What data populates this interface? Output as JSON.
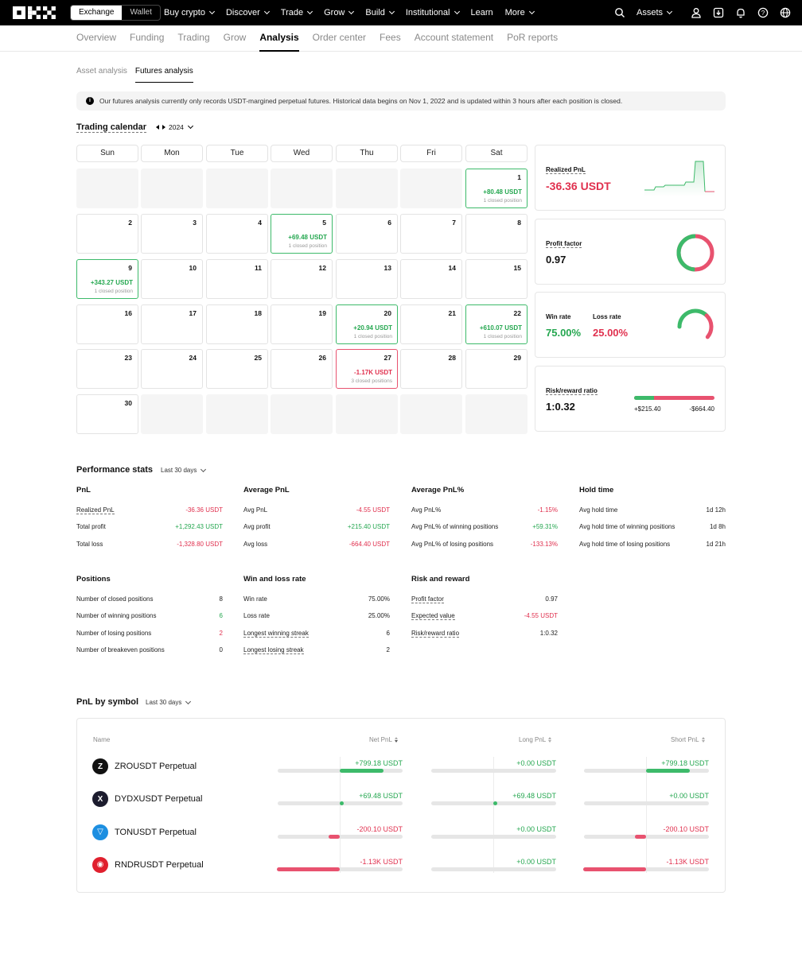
{
  "nav": {
    "exchange": "Exchange",
    "wallet": "Wallet",
    "items": [
      "Buy crypto",
      "Discover",
      "Trade",
      "Grow",
      "Build",
      "Institutional",
      "Learn",
      "More"
    ],
    "assets": "Assets"
  },
  "subnav": [
    "Overview",
    "Funding",
    "Trading",
    "Grow",
    "Analysis",
    "Order center",
    "Fees",
    "Account statement",
    "PoR reports"
  ],
  "analysis_tabs": [
    "Asset analysis",
    "Futures analysis"
  ],
  "notice": "Our futures analysis currently only records USDT-margined perpetual futures. Historical data begins on Nov 1, 2022 and is updated within 3 hours after each position is closed.",
  "calendar": {
    "title": "Trading calendar",
    "year": "2024",
    "weekdays": [
      "Sun",
      "Mon",
      "Tue",
      "Wed",
      "Thu",
      "Fri",
      "Sat"
    ],
    "days": [
      {
        "day": "1",
        "col": 6,
        "row": 0,
        "pnl": "+80.48 USDT",
        "positions": "1 closed position",
        "kind": "win"
      },
      {
        "day": "2",
        "col": 0,
        "row": 1
      },
      {
        "day": "3",
        "col": 1,
        "row": 1
      },
      {
        "day": "4",
        "col": 2,
        "row": 1
      },
      {
        "day": "5",
        "col": 3,
        "row": 1,
        "pnl": "+69.48 USDT",
        "positions": "1 closed position",
        "kind": "win"
      },
      {
        "day": "6",
        "col": 4,
        "row": 1
      },
      {
        "day": "7",
        "col": 5,
        "row": 1
      },
      {
        "day": "8",
        "col": 6,
        "row": 1
      },
      {
        "day": "9",
        "col": 0,
        "row": 2,
        "pnl": "+343.27 USDT",
        "positions": "1 closed position",
        "kind": "win"
      },
      {
        "day": "10",
        "col": 1,
        "row": 2
      },
      {
        "day": "11",
        "col": 2,
        "row": 2
      },
      {
        "day": "12",
        "col": 3,
        "row": 2
      },
      {
        "day": "13",
        "col": 4,
        "row": 2
      },
      {
        "day": "14",
        "col": 5,
        "row": 2
      },
      {
        "day": "15",
        "col": 6,
        "row": 2
      },
      {
        "day": "16",
        "col": 0,
        "row": 3
      },
      {
        "day": "17",
        "col": 1,
        "row": 3
      },
      {
        "day": "18",
        "col": 2,
        "row": 3
      },
      {
        "day": "19",
        "col": 3,
        "row": 3
      },
      {
        "day": "20",
        "col": 4,
        "row": 3,
        "pnl": "+20.94 USDT",
        "positions": "1 closed position",
        "kind": "win"
      },
      {
        "day": "21",
        "col": 5,
        "row": 3
      },
      {
        "day": "22",
        "col": 6,
        "row": 3,
        "pnl": "+610.07 USDT",
        "positions": "1 closed position",
        "kind": "win"
      },
      {
        "day": "23",
        "col": 0,
        "row": 4
      },
      {
        "day": "24",
        "col": 1,
        "row": 4
      },
      {
        "day": "25",
        "col": 2,
        "row": 4
      },
      {
        "day": "26",
        "col": 3,
        "row": 4
      },
      {
        "day": "27",
        "col": 4,
        "row": 4,
        "pnl": "-1.17K USDT",
        "positions": "3 closed positions",
        "kind": "loss"
      },
      {
        "day": "28",
        "col": 5,
        "row": 4
      },
      {
        "day": "29",
        "col": 6,
        "row": 4
      },
      {
        "day": "30",
        "col": 0,
        "row": 5
      }
    ],
    "empty": [
      [
        0,
        0
      ],
      [
        1,
        0
      ],
      [
        2,
        0
      ],
      [
        3,
        0
      ],
      [
        4,
        0
      ],
      [
        5,
        0
      ],
      [
        1,
        5
      ],
      [
        2,
        5
      ],
      [
        3,
        5
      ],
      [
        4,
        5
      ],
      [
        5,
        5
      ],
      [
        6,
        5
      ]
    ]
  },
  "cards": {
    "realized": {
      "label": "Realized PnL",
      "value": "-36.36 USDT"
    },
    "profit_factor": {
      "label": "Profit factor",
      "value": "0.97",
      "fraction": 0.493
    },
    "win_loss": {
      "win_label": "Win rate",
      "win_value": "75.00%",
      "loss_label": "Loss rate",
      "loss_value": "25.00%",
      "win_fraction": 0.75
    },
    "risk": {
      "label": "Risk/reward ratio",
      "value": "1:0.32",
      "left": "+$215.40",
      "right": "-$664.40",
      "left_fraction": 0.245
    }
  },
  "perf": {
    "title": "Performance stats",
    "range": "Last 30 days",
    "groups": [
      {
        "title": "PnL",
        "rows": [
          [
            "Realized PnL",
            "-36.36 USDT",
            "r",
            true
          ],
          [
            "Total profit",
            "+1,292.43 USDT",
            "g",
            false
          ],
          [
            "Total loss",
            "-1,328.80 USDT",
            "r",
            false
          ]
        ]
      },
      {
        "title": "Average PnL",
        "rows": [
          [
            "Avg PnL",
            "-4.55 USDT",
            "r",
            false
          ],
          [
            "Avg profit",
            "+215.40 USDT",
            "g",
            false
          ],
          [
            "Avg loss",
            "-664.40 USDT",
            "r",
            false
          ]
        ]
      },
      {
        "title": "Average PnL%",
        "rows": [
          [
            "Avg PnL%",
            "-1.15%",
            "r",
            false
          ],
          [
            "Avg PnL% of winning positions",
            "+59.31%",
            "g",
            false
          ],
          [
            "Avg PnL% of losing positions",
            "-133.13%",
            "r",
            false
          ]
        ]
      },
      {
        "title": "Hold time",
        "rows": [
          [
            "Avg hold time",
            "1d 12h",
            "",
            false
          ],
          [
            "Avg hold time of winning positions",
            "1d 8h",
            "",
            false
          ],
          [
            "Avg hold time of losing positions",
            "1d 21h",
            "",
            false
          ]
        ]
      },
      {
        "title": "Positions",
        "rows": [
          [
            "Number of closed positions",
            "8",
            "",
            false
          ],
          [
            "Number of winning positions",
            "6",
            "g",
            false
          ],
          [
            "Number of losing positions",
            "2",
            "r",
            false
          ],
          [
            "Number of breakeven positions",
            "0",
            "",
            false
          ]
        ]
      },
      {
        "title": "Win and loss rate",
        "rows": [
          [
            "Win rate",
            "75.00%",
            "",
            false
          ],
          [
            "Loss rate",
            "25.00%",
            "",
            false
          ],
          [
            "Longest winning streak",
            "6",
            "",
            true
          ],
          [
            "Longest losing streak",
            "2",
            "",
            true
          ]
        ]
      },
      {
        "title": "Risk and reward",
        "rows": [
          [
            "Profit factor",
            "0.97",
            "",
            true
          ],
          [
            "Expected value",
            "-4.55 USDT",
            "r",
            true
          ],
          [
            "Risk/reward ratio",
            "1:0.32",
            "",
            true
          ]
        ]
      }
    ]
  },
  "symbols": {
    "title": "PnL by symbol",
    "range": "Last 30 days",
    "headers": [
      "Name",
      "Net PnL",
      "Long PnL",
      "Short PnL"
    ],
    "rows": [
      {
        "name": "ZROUSDT Perpetual",
        "coin": "Z",
        "coin_color": "#111111",
        "net": "+799.18 USDT",
        "net_k": "g",
        "net_f": 0.35,
        "long": "+0.00 USDT",
        "long_k": "g",
        "long_f": 0,
        "short": "+799.18 USDT",
        "short_k": "g",
        "short_f": 0.35
      },
      {
        "name": "DYDXUSDT Perpetual",
        "coin": "X",
        "coin_color": "#1c1c2e",
        "net": "+69.48 USDT",
        "net_k": "g",
        "net_f": 0.03,
        "long": "+69.48 USDT",
        "long_k": "g",
        "long_f": 0.03,
        "short": "+0.00 USDT",
        "short_k": "g",
        "short_f": 0
      },
      {
        "name": "TONUSDT Perpetual",
        "coin": "▽",
        "coin_color": "#1d8fe1",
        "net": "-200.10 USDT",
        "net_k": "r",
        "net_f": -0.09,
        "long": "+0.00 USDT",
        "long_k": "g",
        "long_f": 0,
        "short": "-200.10 USDT",
        "short_k": "r",
        "short_f": -0.09
      },
      {
        "name": "RNDRUSDT Perpetual",
        "coin": "◉",
        "coin_color": "#e0202e",
        "net": "-1.13K USDT",
        "net_k": "r",
        "net_f": -0.5,
        "long": "+0.00 USDT",
        "long_k": "g",
        "long_f": 0,
        "short": "-1.13K USDT",
        "short_k": "r",
        "short_f": -0.5
      }
    ]
  }
}
